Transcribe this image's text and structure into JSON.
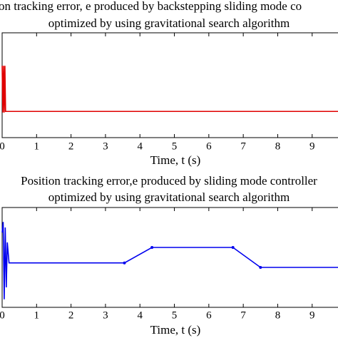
{
  "chart_data": [
    {
      "type": "line",
      "title": [
        "on tracking error, e produced by backstepping sliding mode co",
        "optimized by using gravitational search algorithm"
      ],
      "x_label": "Time, t (s)",
      "xlim": [
        0,
        9.75
      ],
      "xticks": [
        0,
        1,
        2,
        3,
        4,
        5,
        6,
        7,
        8,
        9
      ],
      "ylim": [
        -0.05,
        0.15
      ],
      "series": [
        {
          "color": "#e00000",
          "x": [
            0,
            0.02,
            0.04,
            0.06,
            0.08,
            0.1,
            9.75
          ],
          "values": [
            0.087,
            -0.002,
            0.087,
            -0.002,
            0.087,
            0,
            0
          ]
        }
      ]
    },
    {
      "type": "line",
      "title": [
        "Position tracking error,e produced by sliding mode controller",
        "optimized by using gravitational search algorithm"
      ],
      "x_label": "Time, t (s)",
      "xlim": [
        0,
        9.75
      ],
      "xticks": [
        0,
        1,
        2,
        3,
        4,
        5,
        6,
        7,
        8,
        9
      ],
      "ylim": [
        -1,
        1
      ],
      "series": [
        {
          "color": "#0000ee",
          "x": [
            0,
            0.03,
            0.06,
            0.09,
            0.12,
            0.15,
            0.2,
            3.55,
            4.35,
            6.7,
            7.5,
            9.75
          ],
          "values": [
            0.5,
            0.71,
            -0.84,
            0.6,
            -0.6,
            0.3,
            -0.11,
            -0.11,
            0.2,
            0.2,
            -0.2,
            -0.2
          ]
        }
      ]
    }
  ]
}
